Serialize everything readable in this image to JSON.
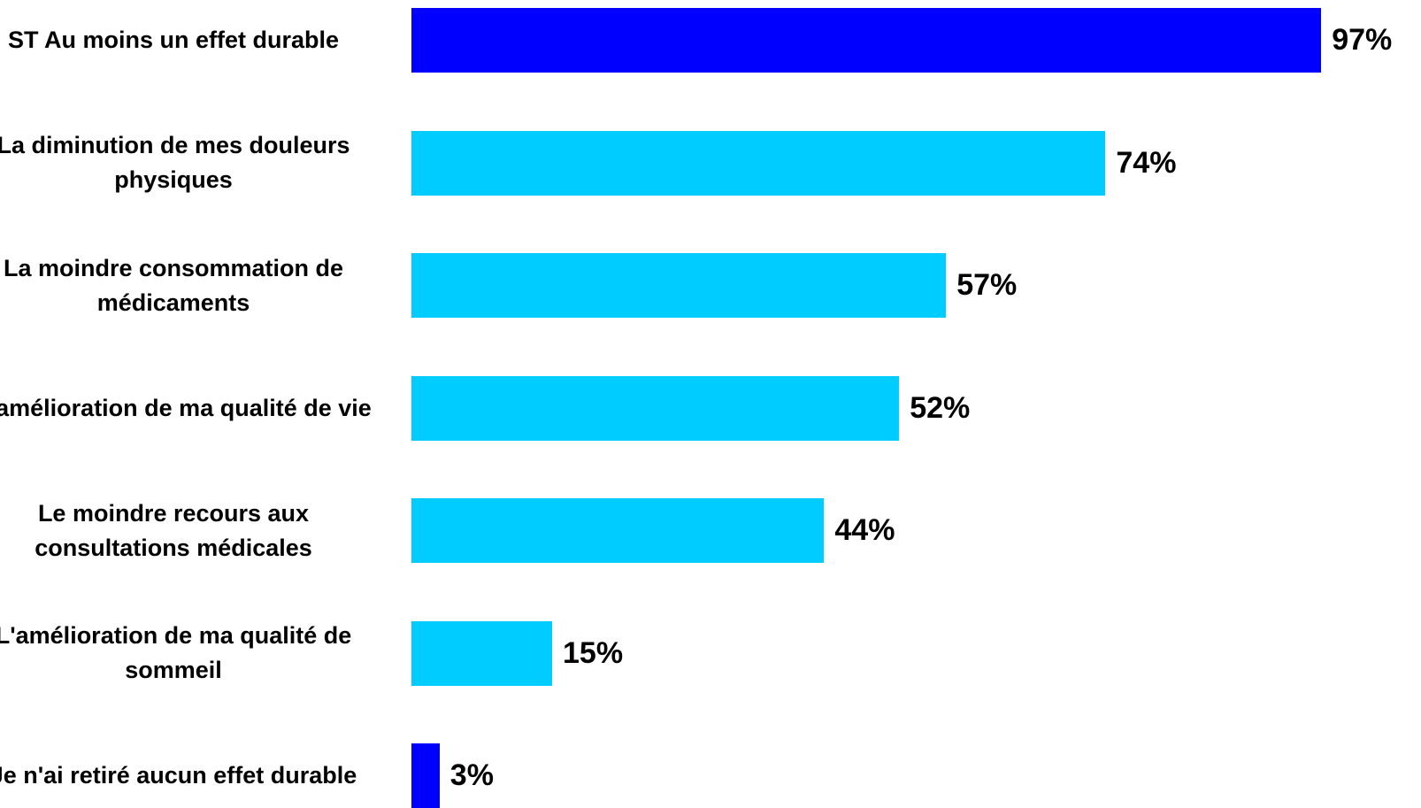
{
  "chart_data": {
    "type": "bar",
    "orientation": "horizontal",
    "title": "",
    "xlabel": "",
    "ylabel": "",
    "xlim": [
      0,
      100
    ],
    "grid": false,
    "categories": [
      "ST Au moins un effet durable",
      "La diminution de mes douleurs physiques",
      "La moindre consommation de médicaments",
      "L'amélioration de ma qualité de vie",
      "Le moindre recours aux consultations médicales",
      "L'amélioration de ma qualité de sommeil",
      "Je n'ai retiré aucun effet durable"
    ],
    "values": [
      97,
      74,
      57,
      52,
      44,
      15,
      3
    ],
    "value_labels": [
      "97%",
      "74%",
      "57%",
      "52%",
      "44%",
      "15%",
      "3%"
    ],
    "bar_colors": [
      "#0000ff",
      "#00ccff",
      "#00ccff",
      "#00ccff",
      "#00ccff",
      "#00ccff",
      "#0000ff"
    ]
  }
}
